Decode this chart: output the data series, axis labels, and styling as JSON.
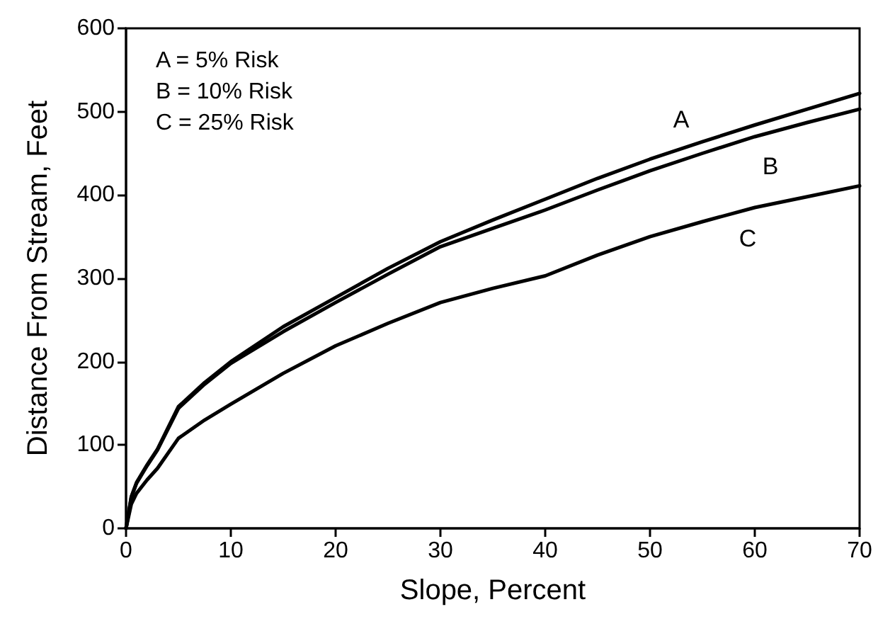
{
  "chart_data": {
    "type": "line",
    "xlabel": "Slope, Percent",
    "ylabel": "Distance From Stream, Feet",
    "x": [
      0,
      0.5,
      1,
      2,
      3,
      5,
      7.5,
      10,
      15,
      20,
      25,
      30,
      35,
      40,
      45,
      50,
      55,
      60,
      65,
      70
    ],
    "series": [
      {
        "name": "A",
        "color": "#000000",
        "values": [
          0,
          38,
          55,
          76,
          95,
          146,
          175,
          200,
          242,
          277,
          312,
          344,
          370,
          395,
          420,
          443,
          464,
          484,
          503,
          522
        ]
      },
      {
        "name": "B",
        "color": "#000000",
        "values": [
          0,
          37,
          54,
          75,
          94,
          144,
          173,
          198,
          236,
          271,
          305,
          338,
          360,
          382,
          406,
          429,
          450,
          470,
          487,
          503
        ]
      },
      {
        "name": "C",
        "color": "#000000",
        "values": [
          0,
          29,
          42,
          58,
          72,
          108,
          130,
          149,
          186,
          219,
          246,
          271,
          288,
          303,
          328,
          350,
          368,
          385,
          398,
          411
        ]
      }
    ],
    "xlim": [
      0,
      70
    ],
    "xticks": [
      0,
      10,
      20,
      30,
      40,
      50,
      60,
      70
    ],
    "ylim": [
      0,
      600
    ],
    "yticks": [
      0,
      100,
      200,
      300,
      400,
      500,
      600
    ],
    "grid": false,
    "marker": "none",
    "line_style": "solid",
    "annotations": [
      "A = 5% Risk",
      "B = 10% Risk",
      "C = 25% Risk"
    ]
  }
}
